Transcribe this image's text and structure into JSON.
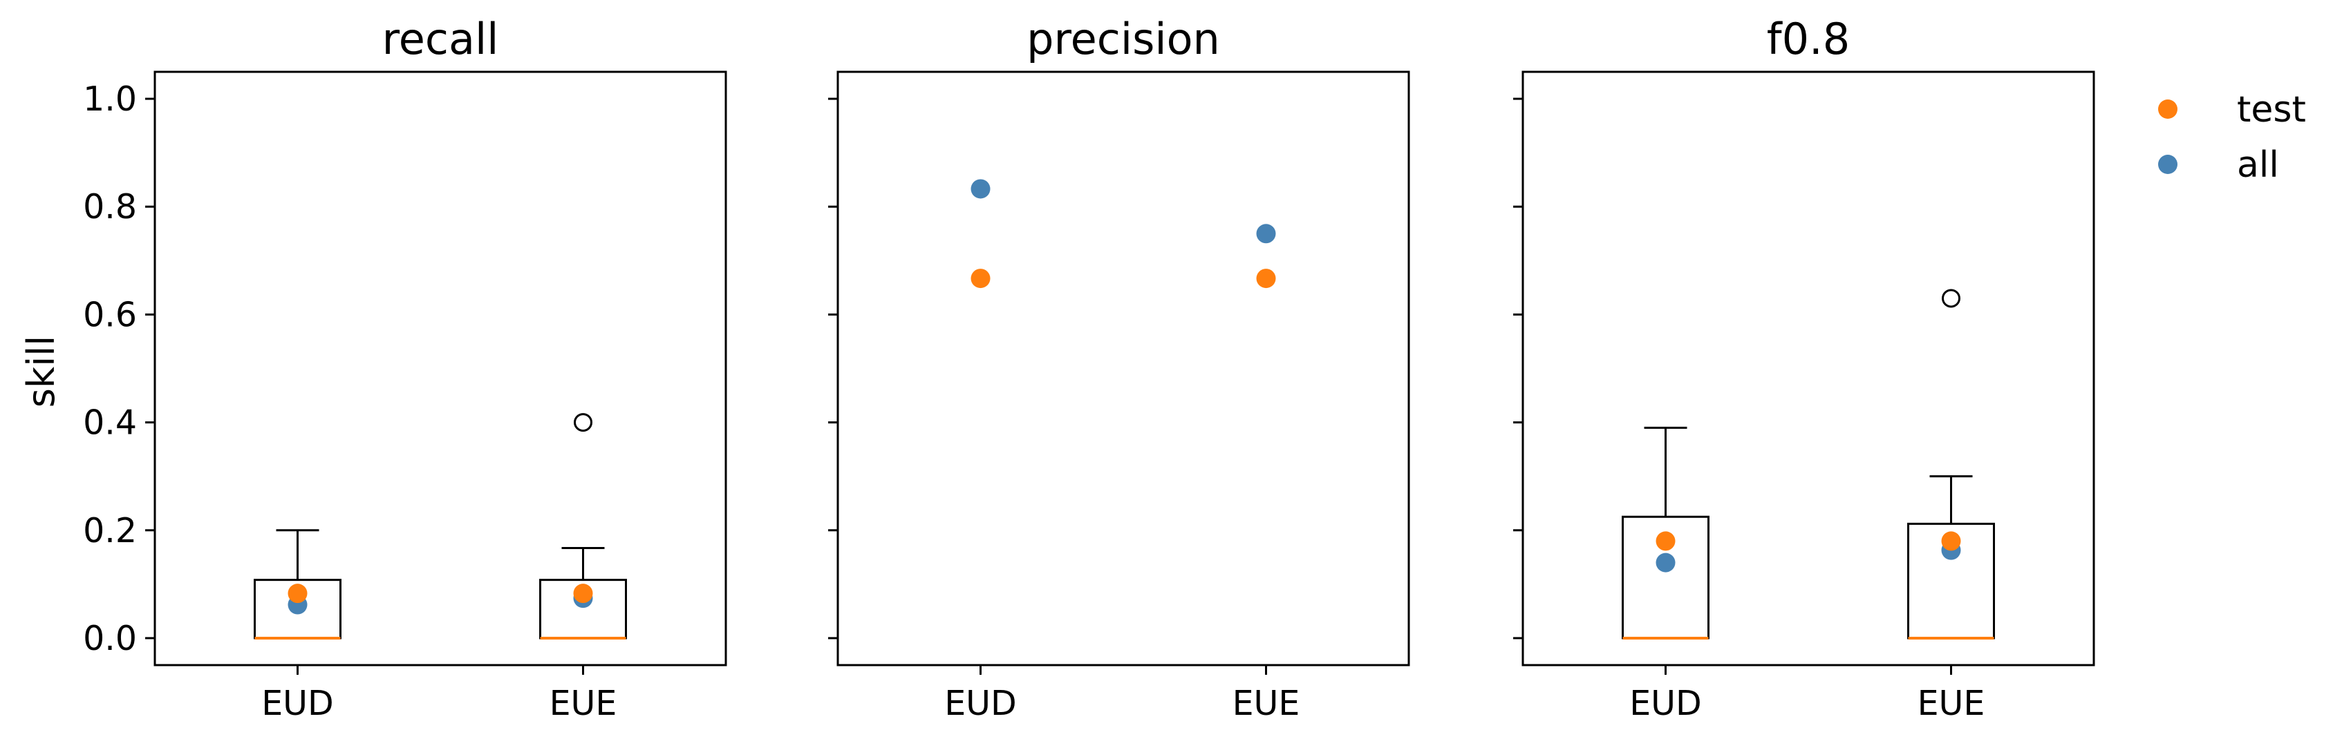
{
  "chart_data": {
    "type": "boxplot+scatter",
    "ylabel": "skill",
    "ylim": [
      -0.05,
      1.05
    ],
    "yticks": [
      "0.0",
      "0.2",
      "0.4",
      "0.6",
      "0.8",
      "1.0"
    ],
    "ytick_values": [
      0.0,
      0.2,
      0.4,
      0.6,
      0.8,
      1.0
    ],
    "categories": [
      "EUD",
      "EUE"
    ],
    "legend": {
      "placement": "outside-right",
      "entries": [
        {
          "name": "test",
          "color": "#ff7f0e"
        },
        {
          "name": "all",
          "color": "#4682b4"
        }
      ]
    },
    "colors": {
      "box": "#000000",
      "median": "#ff7f0e",
      "test": "#ff7f0e",
      "all": "#4682b4"
    },
    "panels": [
      {
        "title": "recall",
        "show_yticklabels": true,
        "boxes": [
          {
            "category": "EUD",
            "whislo": 0.0,
            "q1": 0.0,
            "med": 0.0,
            "q3": 0.108,
            "whishi": 0.2,
            "fliers": []
          },
          {
            "category": "EUE",
            "whislo": 0.0,
            "q1": 0.0,
            "med": 0.0,
            "q3": 0.108,
            "whishi": 0.167,
            "fliers": [
              0.4
            ]
          }
        ],
        "series": [
          {
            "name": "all",
            "values": [
              0.062,
              0.074
            ]
          },
          {
            "name": "test",
            "values": [
              0.083,
              0.083
            ]
          }
        ]
      },
      {
        "title": "precision",
        "show_yticklabels": false,
        "boxes": [],
        "series": [
          {
            "name": "all",
            "values": [
              0.833,
              0.75
            ]
          },
          {
            "name": "test",
            "values": [
              0.667,
              0.667
            ]
          }
        ]
      },
      {
        "title": "f0.8",
        "show_yticklabels": false,
        "boxes": [
          {
            "category": "EUD",
            "whislo": 0.0,
            "q1": 0.0,
            "med": 0.0,
            "q3": 0.225,
            "whishi": 0.39,
            "fliers": []
          },
          {
            "category": "EUE",
            "whislo": 0.0,
            "q1": 0.0,
            "med": 0.0,
            "q3": 0.212,
            "whishi": 0.3,
            "fliers": [
              0.63
            ]
          }
        ],
        "series": [
          {
            "name": "all",
            "values": [
              0.14,
              0.163
            ]
          },
          {
            "name": "test",
            "values": [
              0.18,
              0.18
            ]
          }
        ]
      }
    ]
  }
}
